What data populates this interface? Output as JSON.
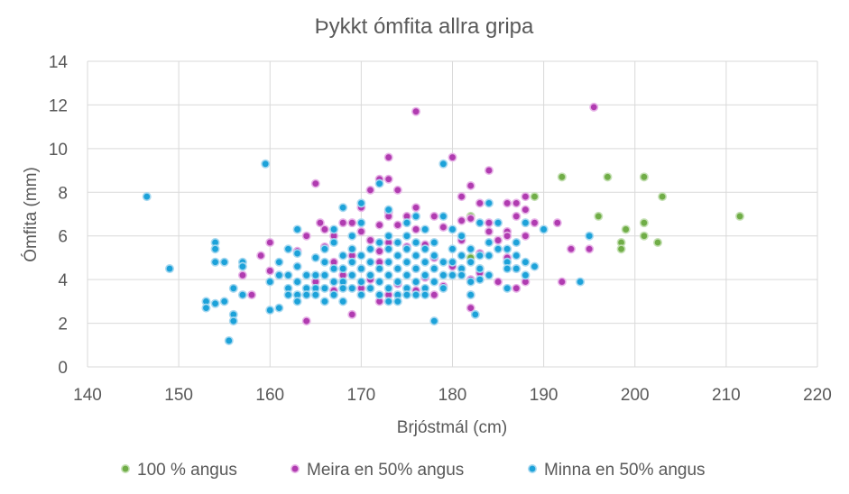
{
  "chart_data": {
    "type": "scatter",
    "title": "Þykkt ómfita allra gripa",
    "xlabel": "Brjóstmál (cm)",
    "ylabel": "Ómfita (mm)",
    "xlim": [
      140,
      220
    ],
    "ylim": [
      0,
      14
    ],
    "x_ticks": [
      140,
      150,
      160,
      170,
      180,
      190,
      200,
      210,
      220
    ],
    "y_ticks": [
      0,
      2,
      4,
      6,
      8,
      10,
      12,
      14
    ],
    "grid": true,
    "legend_position": "bottom",
    "series": [
      {
        "name": "100 % angus",
        "color": "#70ad47",
        "marker_edge": "#c5e0b4",
        "points": [
          [
            189,
            7.8
          ],
          [
            192,
            8.7
          ],
          [
            197,
            8.7
          ],
          [
            201,
            8.7
          ],
          [
            203,
            7.8
          ],
          [
            196,
            6.9
          ],
          [
            201,
            6.6
          ],
          [
            199,
            6.3
          ],
          [
            211.5,
            6.9
          ],
          [
            201,
            6.0
          ],
          [
            198.5,
            5.7
          ],
          [
            202.5,
            5.7
          ],
          [
            198.5,
            5.4
          ],
          [
            183,
            4.5
          ],
          [
            182,
            5.0
          ],
          [
            182,
            6.9
          ]
        ]
      },
      {
        "name": "Meira en 50% angus",
        "color": "#b03bb0",
        "marker_edge": "#e7b3e7",
        "points": [
          [
            176,
            11.7
          ],
          [
            195.5,
            11.9
          ],
          [
            173,
            9.6
          ],
          [
            180,
            9.6
          ],
          [
            184,
            9.0
          ],
          [
            172,
            8.6
          ],
          [
            173,
            8.6
          ],
          [
            165,
            8.4
          ],
          [
            171,
            8.1
          ],
          [
            174,
            8.1
          ],
          [
            182,
            8.3
          ],
          [
            188,
            7.8
          ],
          [
            181,
            7.8
          ],
          [
            183,
            7.5
          ],
          [
            170,
            7.3
          ],
          [
            173,
            7.1
          ],
          [
            176,
            7.3
          ],
          [
            187,
            7.5
          ],
          [
            188,
            7.2
          ],
          [
            186,
            7.5
          ],
          [
            165.5,
            6.6
          ],
          [
            168,
            6.6
          ],
          [
            169,
            6.6
          ],
          [
            173,
            6.9
          ],
          [
            175,
            6.9
          ],
          [
            178,
            6.9
          ],
          [
            181,
            6.7
          ],
          [
            182,
            6.8
          ],
          [
            184,
            6.6
          ],
          [
            186,
            6.2
          ],
          [
            187,
            6.9
          ],
          [
            189,
            6.6
          ],
          [
            191.5,
            6.6
          ],
          [
            166,
            6.3
          ],
          [
            170,
            6.2
          ],
          [
            172,
            6.5
          ],
          [
            174,
            6.5
          ],
          [
            176,
            6.3
          ],
          [
            179,
            6.4
          ],
          [
            184,
            6.2
          ],
          [
            186,
            6.0
          ],
          [
            160,
            5.7
          ],
          [
            164,
            6.0
          ],
          [
            167,
            6.0
          ],
          [
            171,
            5.8
          ],
          [
            173,
            5.7
          ],
          [
            177,
            5.6
          ],
          [
            181,
            5.8
          ],
          [
            185,
            5.8
          ],
          [
            188,
            6.0
          ],
          [
            193,
            5.4
          ],
          [
            195,
            5.4
          ],
          [
            159,
            5.1
          ],
          [
            163,
            5.3
          ],
          [
            166,
            5.5
          ],
          [
            169,
            5.1
          ],
          [
            172,
            5.3
          ],
          [
            175,
            5.5
          ],
          [
            178,
            5.0
          ],
          [
            183,
            5.2
          ],
          [
            186,
            5.0
          ],
          [
            160,
            4.4
          ],
          [
            163,
            4.6
          ],
          [
            167,
            4.8
          ],
          [
            170,
            4.5
          ],
          [
            172,
            4.8
          ],
          [
            176,
            4.5
          ],
          [
            180,
            4.6
          ],
          [
            183,
            4.3
          ],
          [
            187,
            4.5
          ],
          [
            157,
            4.2
          ],
          [
            161,
            4.2
          ],
          [
            165,
            3.9
          ],
          [
            168,
            4.2
          ],
          [
            171,
            4.0
          ],
          [
            174,
            3.8
          ],
          [
            177,
            4.1
          ],
          [
            179,
            3.7
          ],
          [
            182,
            4.0
          ],
          [
            185,
            3.9
          ],
          [
            188,
            3.9
          ],
          [
            192,
            3.9
          ],
          [
            158,
            3.3
          ],
          [
            164,
            3.3
          ],
          [
            167,
            3.5
          ],
          [
            170,
            3.6
          ],
          [
            173,
            3.3
          ],
          [
            176,
            3.5
          ],
          [
            178,
            3.3
          ],
          [
            182,
            3.3
          ],
          [
            187,
            3.6
          ],
          [
            172,
            3.0
          ],
          [
            182,
            2.7
          ],
          [
            164,
            2.1
          ],
          [
            169,
            2.4
          ]
        ]
      },
      {
        "name": "Minna en 50% angus",
        "color": "#1ca2d9",
        "marker_edge": "#a6d8f0",
        "points": [
          [
            146.5,
            7.8
          ],
          [
            149,
            4.5
          ],
          [
            153,
            3.0
          ],
          [
            153,
            2.7
          ],
          [
            154,
            2.9
          ],
          [
            154,
            5.7
          ],
          [
            154,
            5.4
          ],
          [
            154,
            4.8
          ],
          [
            155,
            4.8
          ],
          [
            155,
            3.0
          ],
          [
            155.5,
            1.2
          ],
          [
            156,
            2.4
          ],
          [
            156,
            2.1
          ],
          [
            156,
            3.6
          ],
          [
            157,
            4.8
          ],
          [
            157,
            4.6
          ],
          [
            157,
            3.3
          ],
          [
            159.5,
            9.3
          ],
          [
            160,
            3.9
          ],
          [
            160,
            2.6
          ],
          [
            161,
            4.8
          ],
          [
            161,
            4.2
          ],
          [
            161,
            2.7
          ],
          [
            162,
            5.4
          ],
          [
            162,
            4.2
          ],
          [
            162,
            3.6
          ],
          [
            162,
            3.3
          ],
          [
            163,
            6.3
          ],
          [
            163,
            5.2
          ],
          [
            163,
            4.6
          ],
          [
            163,
            3.9
          ],
          [
            163,
            3.3
          ],
          [
            163,
            3.0
          ],
          [
            164,
            4.2
          ],
          [
            164,
            3.6
          ],
          [
            164,
            3.3
          ],
          [
            165,
            5.0
          ],
          [
            165,
            4.2
          ],
          [
            165,
            3.6
          ],
          [
            165,
            3.3
          ],
          [
            166,
            5.4
          ],
          [
            166,
            4.8
          ],
          [
            166,
            4.2
          ],
          [
            166,
            3.6
          ],
          [
            166,
            3.0
          ],
          [
            167,
            6.3
          ],
          [
            167,
            5.7
          ],
          [
            167,
            4.5
          ],
          [
            167,
            3.9
          ],
          [
            167,
            3.3
          ],
          [
            168,
            7.3
          ],
          [
            168,
            5.1
          ],
          [
            168,
            4.5
          ],
          [
            168,
            3.9
          ],
          [
            168,
            3.6
          ],
          [
            168,
            3.0
          ],
          [
            169,
            6.0
          ],
          [
            169,
            5.4
          ],
          [
            169,
            4.8
          ],
          [
            169,
            4.2
          ],
          [
            169,
            3.6
          ],
          [
            170,
            7.5
          ],
          [
            170,
            6.6
          ],
          [
            170,
            5.1
          ],
          [
            170,
            4.5
          ],
          [
            170,
            3.9
          ],
          [
            170,
            3.3
          ],
          [
            171,
            5.4
          ],
          [
            171,
            4.8
          ],
          [
            171,
            4.2
          ],
          [
            171,
            3.6
          ],
          [
            172,
            8.4
          ],
          [
            172,
            5.7
          ],
          [
            172,
            4.5
          ],
          [
            172,
            3.9
          ],
          [
            172,
            3.3
          ],
          [
            173,
            7.2
          ],
          [
            173,
            6.0
          ],
          [
            173,
            5.4
          ],
          [
            173,
            4.8
          ],
          [
            173,
            4.2
          ],
          [
            173,
            3.6
          ],
          [
            173,
            3.0
          ],
          [
            174,
            5.7
          ],
          [
            174,
            5.1
          ],
          [
            174,
            4.5
          ],
          [
            174,
            3.9
          ],
          [
            174,
            3.3
          ],
          [
            174,
            3.0
          ],
          [
            175,
            6.6
          ],
          [
            175,
            6.0
          ],
          [
            175,
            5.4
          ],
          [
            175,
            4.8
          ],
          [
            175,
            4.2
          ],
          [
            175,
            3.6
          ],
          [
            175,
            3.3
          ],
          [
            176,
            6.9
          ],
          [
            176,
            5.7
          ],
          [
            176,
            5.1
          ],
          [
            176,
            4.5
          ],
          [
            176,
            3.9
          ],
          [
            176,
            3.3
          ],
          [
            177,
            6.3
          ],
          [
            177,
            5.4
          ],
          [
            177,
            4.8
          ],
          [
            177,
            4.2
          ],
          [
            177,
            3.6
          ],
          [
            177,
            3.3
          ],
          [
            178,
            5.7
          ],
          [
            178,
            5.1
          ],
          [
            178,
            4.5
          ],
          [
            178,
            3.9
          ],
          [
            178,
            2.1
          ],
          [
            179,
            9.3
          ],
          [
            179,
            6.9
          ],
          [
            179,
            4.8
          ],
          [
            179,
            4.2
          ],
          [
            179,
            3.6
          ],
          [
            180,
            6.3
          ],
          [
            180,
            5.4
          ],
          [
            180,
            4.8
          ],
          [
            180,
            4.2
          ],
          [
            181,
            5.1
          ],
          [
            181,
            4.5
          ],
          [
            181,
            4.2
          ],
          [
            182,
            5.4
          ],
          [
            182,
            4.8
          ],
          [
            182,
            3.9
          ],
          [
            182,
            3.3
          ],
          [
            183,
            6.6
          ],
          [
            183,
            5.1
          ],
          [
            183,
            4.5
          ],
          [
            184,
            7.5
          ],
          [
            184,
            5.7
          ],
          [
            184,
            5.1
          ],
          [
            184,
            4.2
          ],
          [
            185,
            6.6
          ],
          [
            185,
            5.4
          ],
          [
            186,
            5.4
          ],
          [
            186,
            4.8
          ],
          [
            186,
            4.5
          ],
          [
            186,
            3.6
          ],
          [
            187,
            5.7
          ],
          [
            187,
            5.1
          ],
          [
            187,
            4.5
          ],
          [
            188,
            6.6
          ],
          [
            188,
            4.8
          ],
          [
            188,
            4.2
          ],
          [
            189,
            4.6
          ],
          [
            190,
            6.3
          ],
          [
            194,
            3.9
          ],
          [
            195,
            6.0
          ],
          [
            182.5,
            2.4
          ],
          [
            181,
            6.0
          ],
          [
            183,
            4.0
          ]
        ]
      }
    ]
  }
}
